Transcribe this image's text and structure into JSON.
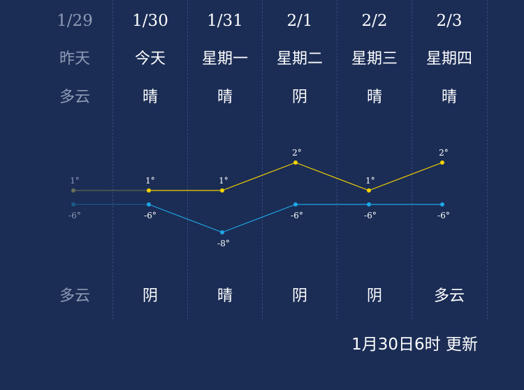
{
  "days": [
    {
      "date": "1/29",
      "weekday": "昨天",
      "day_weather": "多云",
      "night_weather": "多云",
      "past": true
    },
    {
      "date": "1/30",
      "weekday": "今天",
      "day_weather": "晴",
      "night_weather": "阴",
      "past": false
    },
    {
      "date": "1/31",
      "weekday": "星期一",
      "day_weather": "晴",
      "night_weather": "晴",
      "past": false
    },
    {
      "date": "2/1",
      "weekday": "星期二",
      "day_weather": "阴",
      "night_weather": "阴",
      "past": false
    },
    {
      "date": "2/2",
      "weekday": "星期三",
      "day_weather": "晴",
      "night_weather": "阴",
      "past": false
    },
    {
      "date": "2/3",
      "weekday": "星期四",
      "day_weather": "晴",
      "night_weather": "多云",
      "past": false
    }
  ],
  "chart_data": {
    "type": "line",
    "categories": [
      "1/29",
      "1/30",
      "1/31",
      "2/1",
      "2/2",
      "2/3"
    ],
    "series": [
      {
        "values": [
          1,
          1,
          1,
          2,
          1,
          2
        ],
        "labels": [
          "1°",
          "1°",
          "1°",
          "2°",
          "1°",
          "2°"
        ],
        "color": "#f5d300"
      },
      {
        "values": [
          -6,
          -6,
          -8,
          -6,
          -6,
          -6
        ],
        "labels": [
          "-6°",
          "-6°",
          "-8°",
          "-6°",
          "-6°",
          "-6°"
        ],
        "color": "#1ea7e6"
      }
    ],
    "past_color": "#4a5a78",
    "grid": false
  },
  "updated": "1月30日6时 更新"
}
